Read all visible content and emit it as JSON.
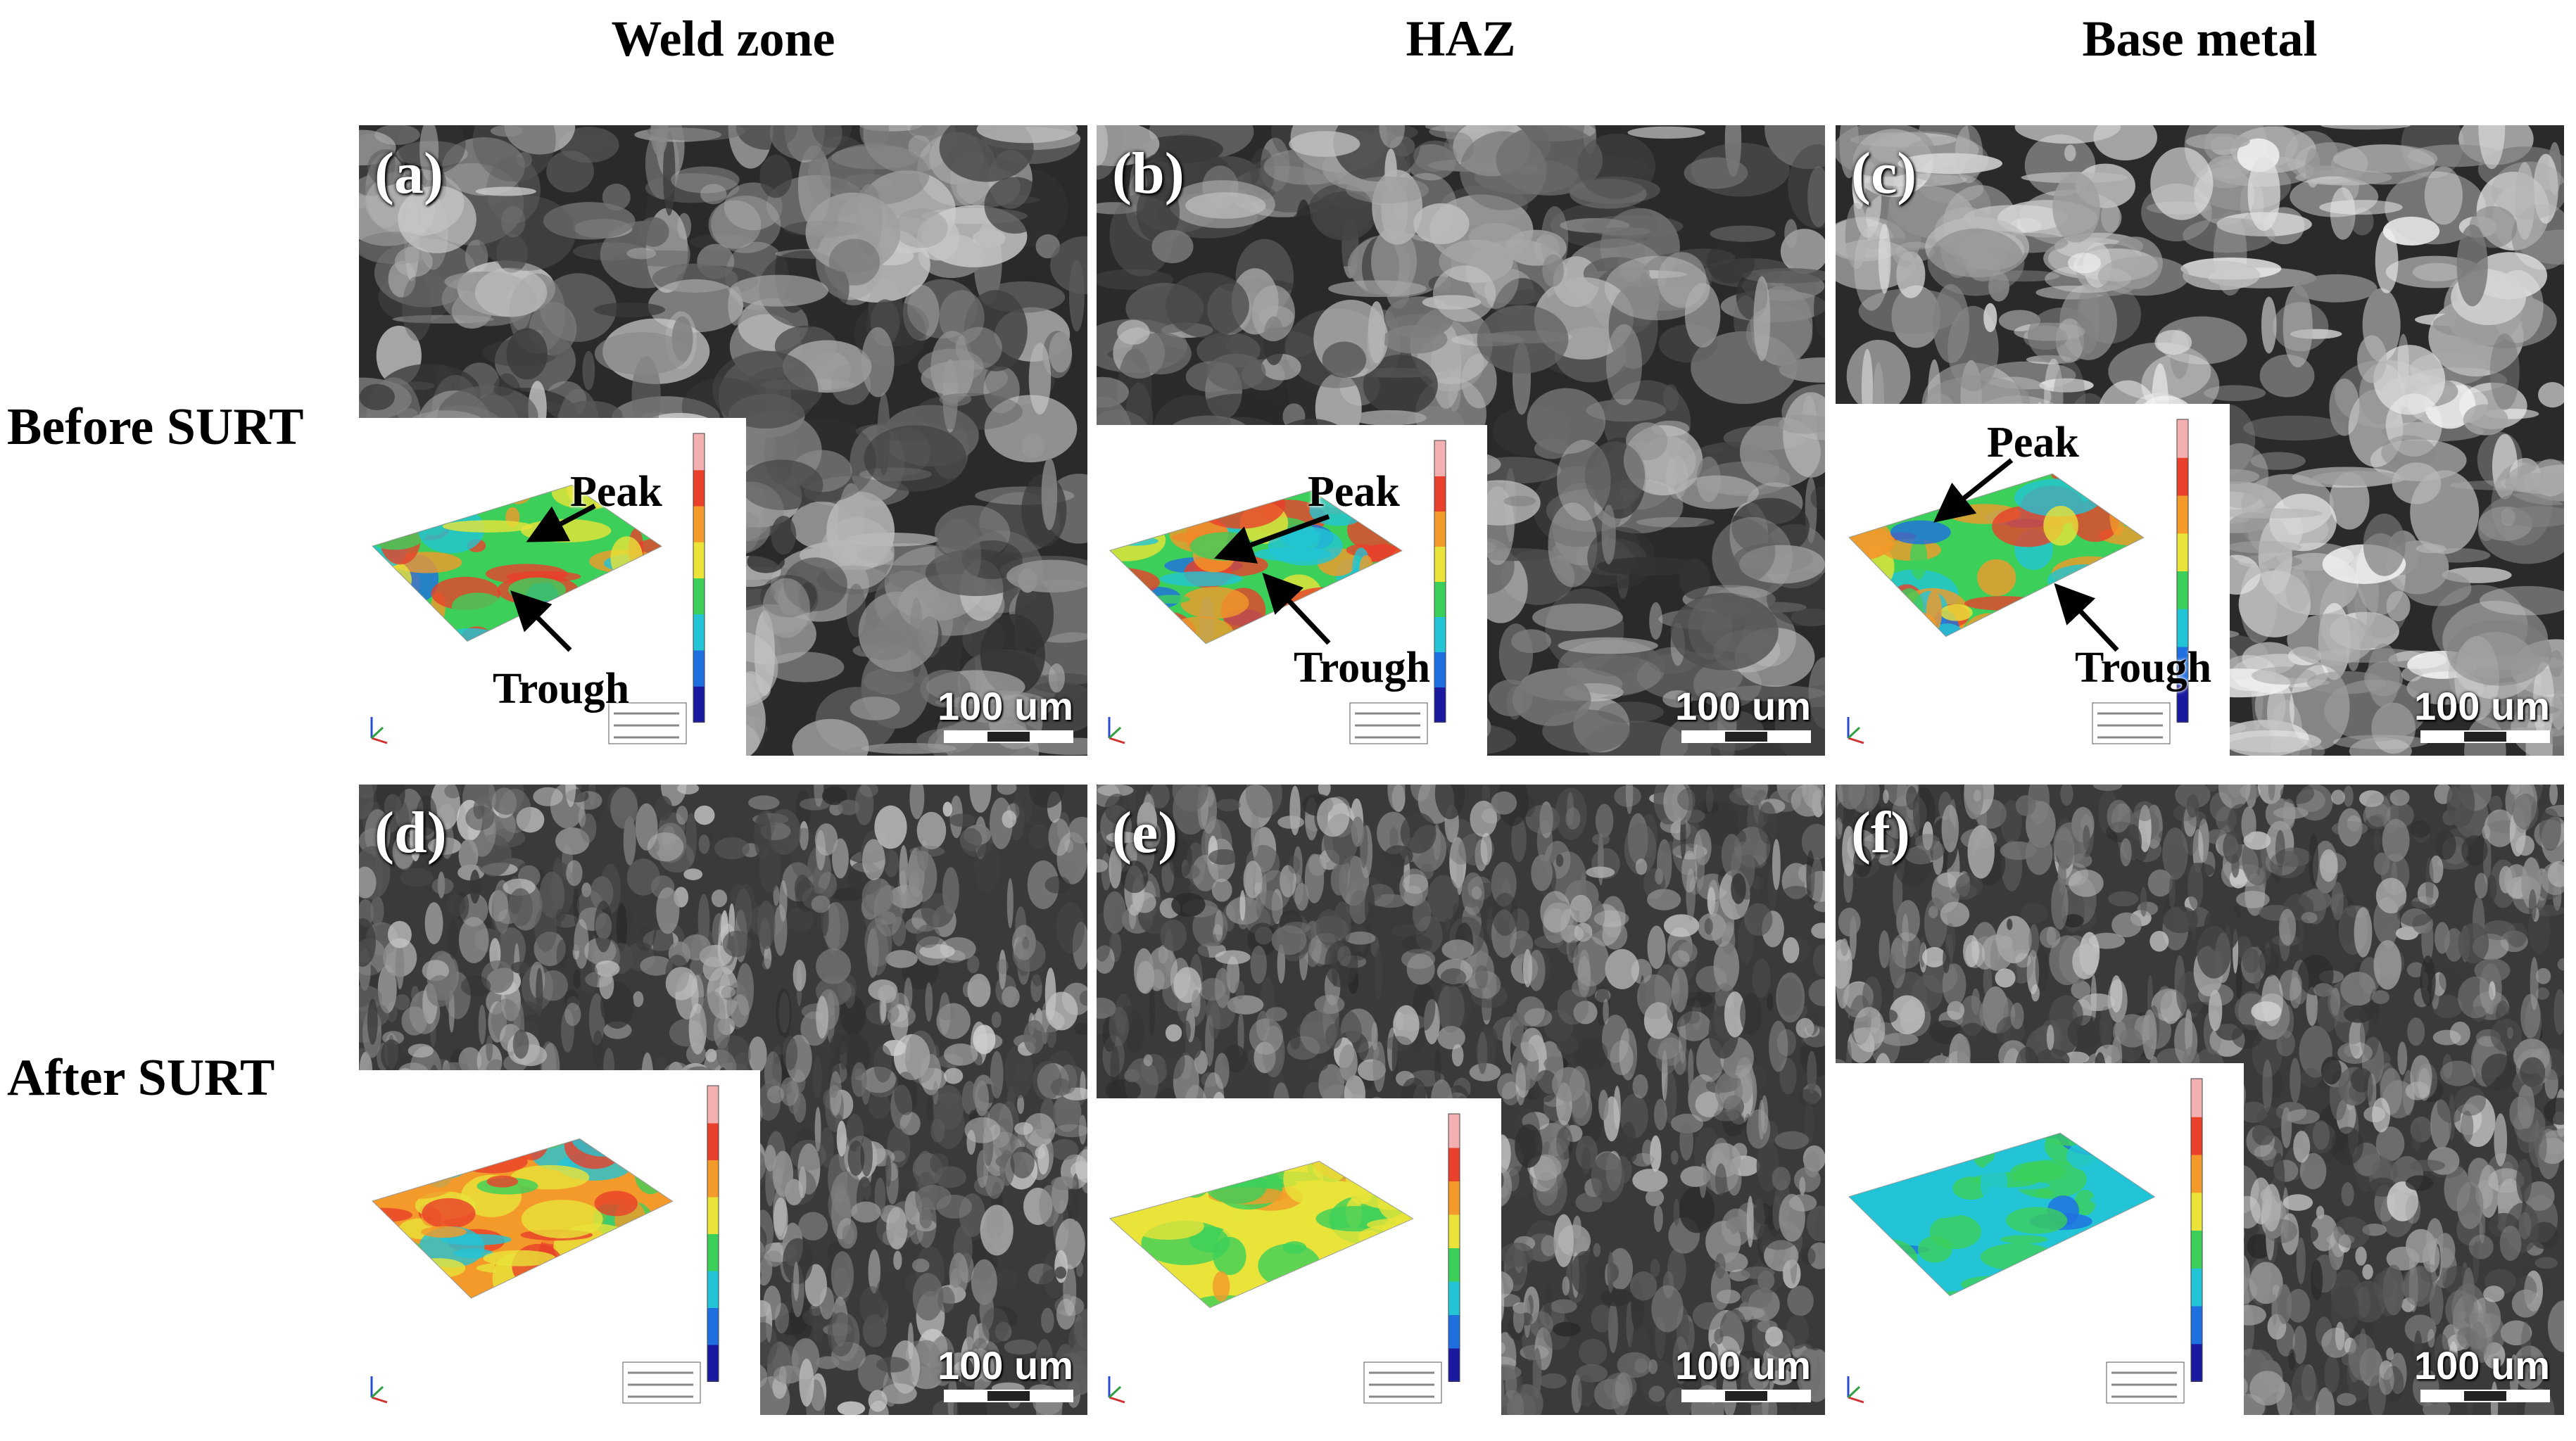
{
  "columns": [
    "Weld zone",
    "HAZ",
    "Base metal"
  ],
  "rows": [
    "Before SURT",
    "After SURT"
  ],
  "panels": [
    {
      "label": "(a)",
      "scale": "100 um",
      "peak": "Peak",
      "trough": "Trough"
    },
    {
      "label": "(b)",
      "scale": "100 um",
      "peak": "Peak",
      "trough": "Trough"
    },
    {
      "label": "(c)",
      "scale": "100 um",
      "peak": "Peak",
      "trough": "Trough"
    },
    {
      "label": "(d)",
      "scale": "100 um"
    },
    {
      "label": "(e)",
      "scale": "100 um"
    },
    {
      "label": "(f)",
      "scale": "100 um"
    }
  ],
  "colors": {
    "background": "#ffffff",
    "micrograph_dark": "#1c1c1c",
    "micrograph_light": "#e8e8e8",
    "colormap": [
      "#1a1aa0",
      "#1f6fe0",
      "#22c4d6",
      "#3ccf5a",
      "#e9e33a",
      "#f39a2a",
      "#e8402a",
      "#f2b0b0"
    ]
  },
  "icons": [
    "axis-triad-icon",
    "colorbar-icon",
    "arrow-icon"
  ]
}
